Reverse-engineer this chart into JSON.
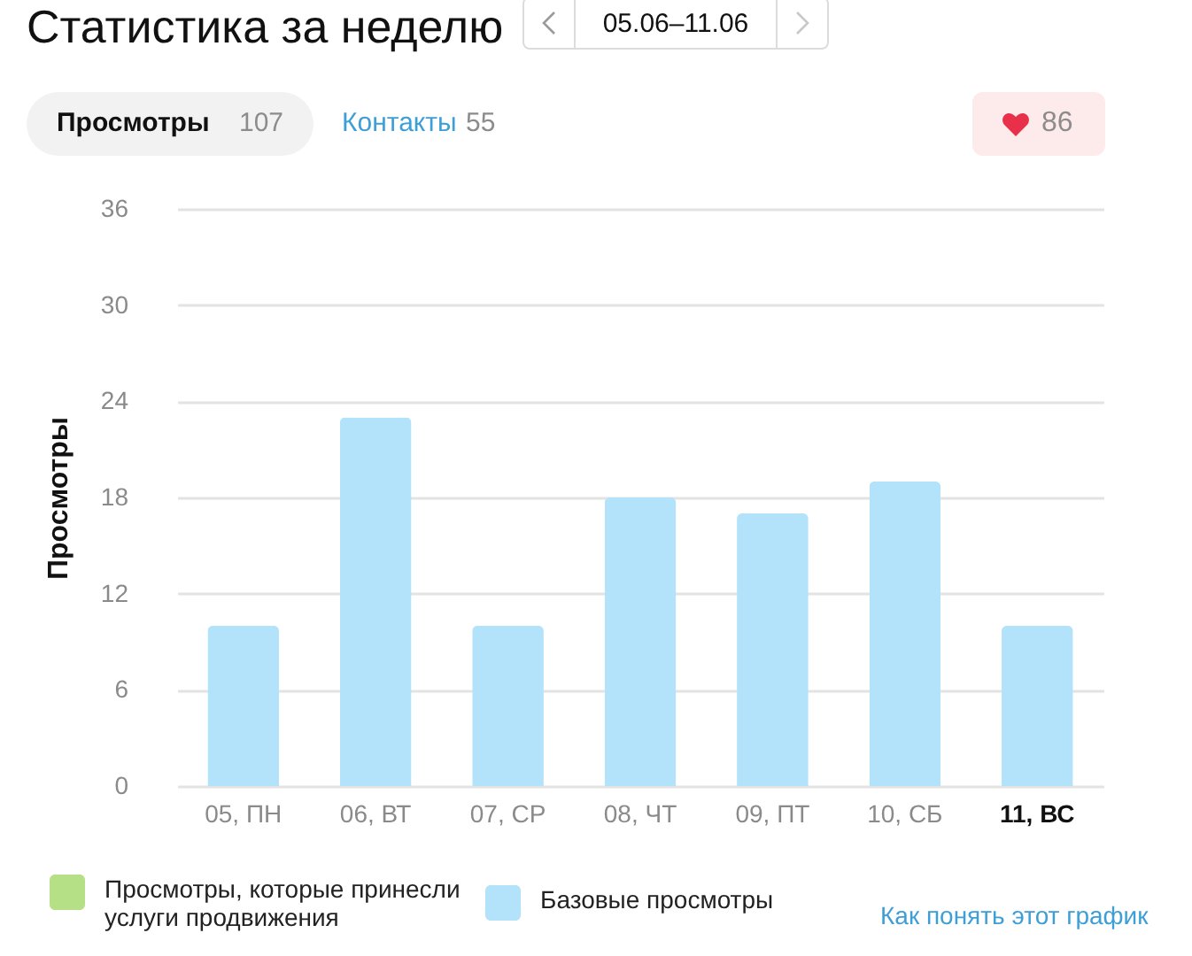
{
  "chart_data": {
    "type": "bar",
    "title": "Статистика за неделю",
    "subtitle": "05.06–11.06",
    "ylabel": "Просмотры",
    "categories": [
      "05, ПН",
      "06, ВТ",
      "07, СР",
      "08, ЧТ",
      "09, ПТ",
      "10, СБ",
      "11, ВС"
    ],
    "series": [
      {
        "name": "Просмотры, которые принесли услуги продвижения",
        "color": "#b5e085",
        "values": [
          0,
          0,
          0,
          0,
          0,
          0,
          0
        ]
      },
      {
        "name": "Базовые просмотры",
        "color": "#b3e3fb",
        "values": [
          10,
          23,
          10,
          18,
          17,
          19,
          10
        ]
      }
    ],
    "stacked": true,
    "ylim": [
      0,
      36
    ],
    "yticks": [
      0,
      6,
      12,
      18,
      24,
      30,
      36
    ],
    "grid": "y",
    "legend": "bottom left",
    "annotations": [
      "Просмотры",
      "107",
      "Контакты",
      "55",
      "86",
      "Как понять этот график"
    ]
  }
}
